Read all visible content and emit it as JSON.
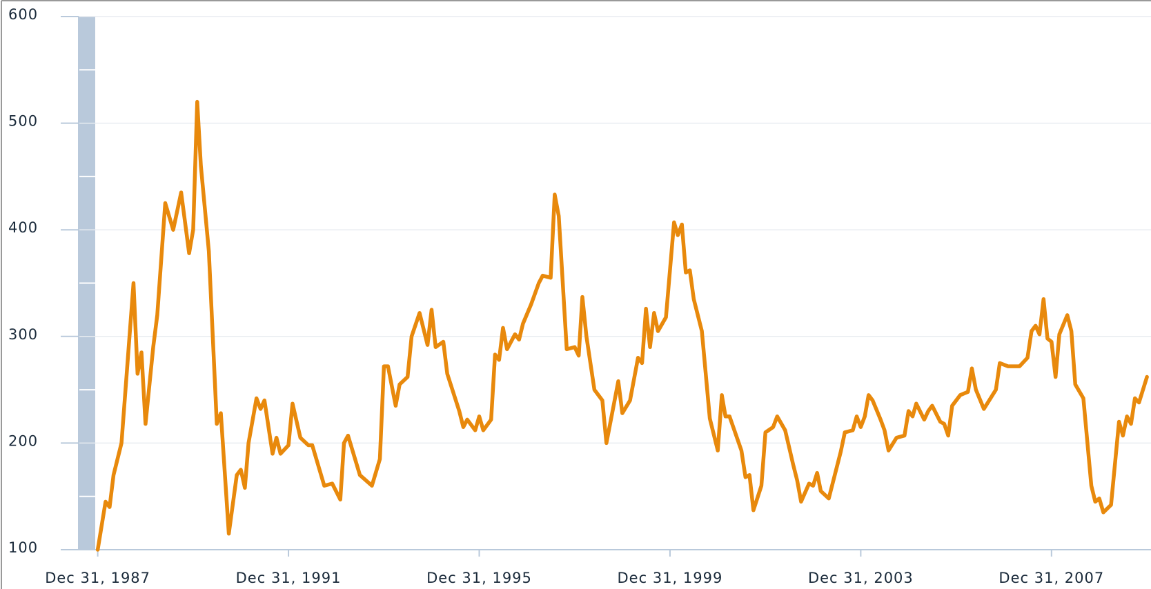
{
  "chart_data": {
    "type": "line",
    "x": [
      "1987-12-31",
      "1988-02-29",
      "1988-03-31",
      "1988-04-30",
      "1988-06-30",
      "1988-09-30",
      "1988-10-31",
      "1988-11-30",
      "1988-12-31",
      "1989-02-28",
      "1989-03-31",
      "1989-05-31",
      "1989-07-31",
      "1989-09-30",
      "1989-11-30",
      "1989-12-31",
      "1990-01-31",
      "1990-02-28",
      "1990-04-30",
      "1990-06-30",
      "1990-07-31",
      "1990-09-30",
      "1990-11-30",
      "1990-12-31",
      "1991-01-31",
      "1991-02-28",
      "1991-04-30",
      "1991-05-31",
      "1991-06-30",
      "1991-08-31",
      "1991-09-30",
      "1991-10-31",
      "1991-12-31",
      "1992-01-31",
      "1992-03-31",
      "1992-05-31",
      "1992-06-30",
      "1992-09-30",
      "1992-11-30",
      "1993-01-31",
      "1993-02-28",
      "1993-03-31",
      "1993-06-30",
      "1993-09-30",
      "1993-11-30",
      "1993-12-31",
      "1994-01-31",
      "1994-03-31",
      "1994-04-30",
      "1994-06-30",
      "1994-07-31",
      "1994-09-30",
      "1994-11-30",
      "1994-12-31",
      "1995-01-31",
      "1995-03-31",
      "1995-04-30",
      "1995-07-31",
      "1995-08-31",
      "1995-09-30",
      "1995-11-30",
      "1995-12-31",
      "1996-01-31",
      "1996-03-31",
      "1996-04-30",
      "1996-05-31",
      "1996-06-30",
      "1996-07-31",
      "1996-09-30",
      "1996-10-31",
      "1996-11-30",
      "1997-01-31",
      "1997-03-31",
      "1997-04-30",
      "1997-06-30",
      "1997-07-31",
      "1997-08-31",
      "1997-10-31",
      "1997-12-31",
      "1998-01-31",
      "1998-02-28",
      "1998-03-31",
      "1998-05-31",
      "1998-07-31",
      "1998-08-31",
      "1998-11-30",
      "1998-12-31",
      "1999-02-28",
      "1999-04-30",
      "1999-05-31",
      "1999-06-30",
      "1999-07-31",
      "1999-08-31",
      "1999-09-30",
      "1999-11-30",
      "2000-01-31",
      "2000-02-29",
      "2000-03-31",
      "2000-04-30",
      "2000-05-31",
      "2000-06-30",
      "2000-08-31",
      "2000-10-31",
      "2000-12-31",
      "2001-01-31",
      "2001-02-28",
      "2001-03-31",
      "2001-06-30",
      "2001-07-31",
      "2001-08-31",
      "2001-09-30",
      "2001-11-30",
      "2001-12-31",
      "2002-02-28",
      "2002-03-31",
      "2002-05-31",
      "2002-07-31",
      "2002-08-31",
      "2002-09-30",
      "2002-11-30",
      "2002-12-31",
      "2003-01-31",
      "2003-02-28",
      "2003-04-30",
      "2003-07-31",
      "2003-08-31",
      "2003-10-31",
      "2003-11-30",
      "2003-12-31",
      "2004-01-31",
      "2004-02-29",
      "2004-03-31",
      "2004-05-31",
      "2004-06-30",
      "2004-07-31",
      "2004-09-30",
      "2004-11-30",
      "2004-12-31",
      "2005-01-31",
      "2005-02-28",
      "2005-04-30",
      "2005-05-31",
      "2005-06-30",
      "2005-08-31",
      "2005-09-30",
      "2005-10-31",
      "2005-11-30",
      "2006-01-31",
      "2006-03-31",
      "2006-04-30",
      "2006-05-31",
      "2006-07-31",
      "2006-10-31",
      "2006-11-30",
      "2007-01-31",
      "2007-02-28",
      "2007-04-30",
      "2007-06-30",
      "2007-07-31",
      "2007-08-31",
      "2007-09-30",
      "2007-10-31",
      "2007-11-30",
      "2007-12-31",
      "2008-01-31",
      "2008-02-29",
      "2008-04-30",
      "2008-05-31",
      "2008-06-30",
      "2008-08-31",
      "2008-10-31",
      "2008-11-30",
      "2008-12-31",
      "2009-01-31",
      "2009-03-31",
      "2009-05-31",
      "2009-06-30",
      "2009-07-31",
      "2009-08-31",
      "2009-09-30",
      "2009-10-31",
      "2009-12-31"
    ],
    "series": [
      {
        "color": "#e8890c",
        "values": [
          100,
          145,
          140,
          170,
          200,
          350,
          265,
          285,
          218,
          290,
          320,
          425,
          400,
          435,
          378,
          400,
          520,
          460,
          380,
          218,
          228,
          115,
          170,
          175,
          158,
          200,
          242,
          232,
          240,
          190,
          205,
          190,
          198,
          237,
          205,
          198,
          198,
          160,
          162,
          147,
          200,
          207,
          170,
          160,
          185,
          272,
          272,
          235,
          255,
          262,
          300,
          322,
          292,
          325,
          290,
          295,
          265,
          230,
          215,
          222,
          212,
          225,
          212,
          222,
          283,
          278,
          308,
          288,
          302,
          297,
          312,
          330,
          350,
          357,
          355,
          433,
          413,
          288,
          290,
          282,
          337,
          300,
          250,
          240,
          200,
          258,
          228,
          240,
          280,
          275,
          326,
          290,
          322,
          305,
          318,
          407,
          395,
          405,
          360,
          362,
          335,
          305,
          223,
          193,
          245,
          225,
          225,
          193,
          168,
          170,
          137,
          160,
          210,
          215,
          225,
          212,
          180,
          165,
          145,
          162,
          160,
          172,
          155,
          148,
          192,
          210,
          212,
          225,
          215,
          225,
          245,
          240,
          222,
          212,
          193,
          205,
          207,
          230,
          225,
          237,
          222,
          230,
          235,
          220,
          218,
          207,
          235,
          245,
          248,
          270,
          250,
          232,
          250,
          275,
          272,
          272,
          272,
          280,
          305,
          310,
          302,
          335,
          298,
          295,
          262,
          302,
          320,
          305,
          255,
          242,
          160,
          145,
          148,
          135,
          142,
          220,
          207,
          225,
          218,
          242,
          238,
          262
        ]
      }
    ],
    "xlim": [
      "1987-08-07",
      "2010-01-31"
    ],
    "xticks": [
      {
        "value": "1987-12-31",
        "label": "Dec 31, 1987"
      },
      {
        "value": "1991-12-31",
        "label": "Dec 31, 1991"
      },
      {
        "value": "1995-12-31",
        "label": "Dec 31, 1995"
      },
      {
        "value": "1999-12-31",
        "label": "Dec 31, 1999"
      },
      {
        "value": "2003-12-31",
        "label": "Dec 31, 2003"
      },
      {
        "value": "2007-12-31",
        "label": "Dec 31, 2007"
      }
    ],
    "ylim": [
      100,
      600
    ],
    "yticks": [
      100,
      200,
      300,
      400,
      500,
      600
    ],
    "grid": true
  }
}
